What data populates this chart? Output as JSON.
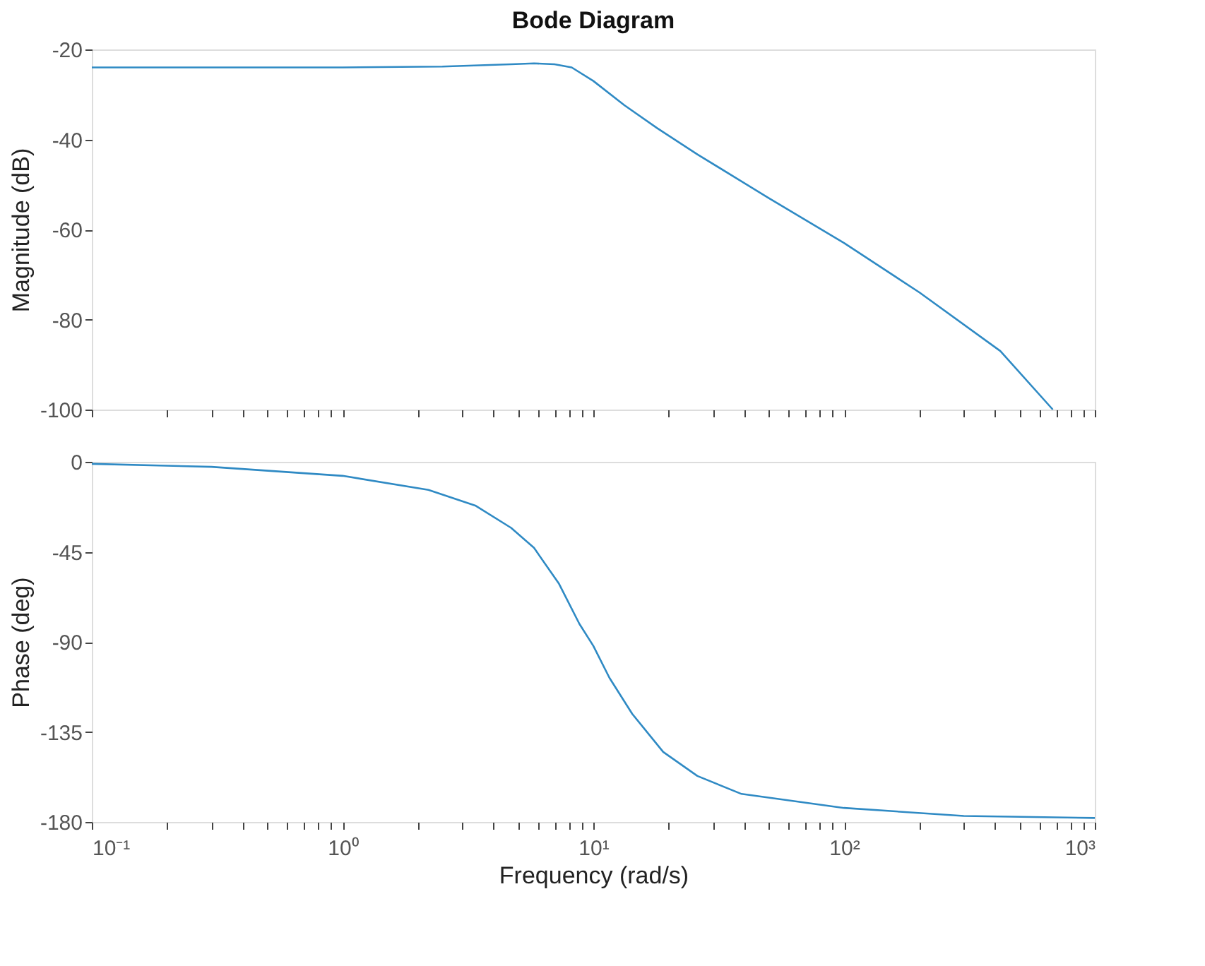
{
  "chart_data": [
    {
      "type": "line",
      "title": "Bode Diagram",
      "ylabel": "Magnitude (dB)",
      "log": "x",
      "grid": false,
      "tick_labels": "y",
      "marker": "none",
      "line_style": "solid",
      "xlim": [
        0.1,
        1000
      ],
      "ylim": [
        -100,
        -20
      ],
      "yticks": [
        -100,
        -80,
        -60,
        -40,
        -20
      ],
      "xticks": [
        {
          "value": 0.1,
          "label": null
        },
        {
          "value": 0.2,
          "label": null
        },
        {
          "value": 0.3,
          "label": null
        },
        {
          "value": 0.4,
          "label": null
        },
        {
          "value": 0.5,
          "label": null
        },
        {
          "value": 0.6,
          "label": null
        },
        {
          "value": 0.7,
          "label": null
        },
        {
          "value": 0.8,
          "label": null
        },
        {
          "value": 0.9,
          "label": null
        },
        {
          "value": 1,
          "label": null
        },
        {
          "value": 2,
          "label": null
        },
        {
          "value": 3,
          "label": null
        },
        {
          "value": 4,
          "label": null
        },
        {
          "value": 5,
          "label": null
        },
        {
          "value": 6,
          "label": null
        },
        {
          "value": 7,
          "label": null
        },
        {
          "value": 8,
          "label": null
        },
        {
          "value": 9,
          "label": null
        },
        {
          "value": 10,
          "label": null
        },
        {
          "value": 20,
          "label": null
        },
        {
          "value": 30,
          "label": null
        },
        {
          "value": 40,
          "label": null
        },
        {
          "value": 50,
          "label": null
        },
        {
          "value": 60,
          "label": null
        },
        {
          "value": 70,
          "label": null
        },
        {
          "value": 80,
          "label": null
        },
        {
          "value": 90,
          "label": null
        },
        {
          "value": 100,
          "label": null
        },
        {
          "value": 200,
          "label": null
        },
        {
          "value": 300,
          "label": null
        },
        {
          "value": 400,
          "label": null
        },
        {
          "value": 500,
          "label": null
        },
        {
          "value": 600,
          "label": null
        },
        {
          "value": 700,
          "label": null
        },
        {
          "value": 800,
          "label": null
        },
        {
          "value": 900,
          "label": null
        },
        {
          "value": 1000,
          "label": null
        }
      ],
      "series": [
        {
          "color": "#2f8ac4",
          "x": [
            0.1,
            1,
            2.5,
            4.7,
            5.8,
            7,
            8.2,
            10,
            13.3,
            18,
            26,
            50,
            100,
            200,
            420,
            680
          ],
          "values": [
            -24,
            -24,
            -23.8,
            -23.3,
            -23.1,
            -23.3,
            -24,
            -27,
            -32.4,
            -37.5,
            -43.3,
            -53,
            -63,
            -74,
            -87,
            -100
          ]
        }
      ]
    },
    {
      "type": "line",
      "xlabel": "Frequency  (rad/s)",
      "ylabel": "Phase (deg)",
      "log": "x",
      "grid": false,
      "marker": "none",
      "line_style": "solid",
      "xlim": [
        0.1,
        1000
      ],
      "ylim": [
        -180,
        0
      ],
      "yticks": [
        -180,
        -135,
        -90,
        -45,
        0
      ],
      "xticks": [
        {
          "value": 0.1,
          "label": "10⁻¹"
        },
        {
          "value": 0.2,
          "label": null
        },
        {
          "value": 0.3,
          "label": null
        },
        {
          "value": 0.4,
          "label": null
        },
        {
          "value": 0.5,
          "label": null
        },
        {
          "value": 0.6,
          "label": null
        },
        {
          "value": 0.7,
          "label": null
        },
        {
          "value": 0.8,
          "label": null
        },
        {
          "value": 0.9,
          "label": null
        },
        {
          "value": 1,
          "label": "10⁰"
        },
        {
          "value": 2,
          "label": null
        },
        {
          "value": 3,
          "label": null
        },
        {
          "value": 4,
          "label": null
        },
        {
          "value": 5,
          "label": null
        },
        {
          "value": 6,
          "label": null
        },
        {
          "value": 7,
          "label": null
        },
        {
          "value": 8,
          "label": null
        },
        {
          "value": 9,
          "label": null
        },
        {
          "value": 10,
          "label": "10¹"
        },
        {
          "value": 20,
          "label": null
        },
        {
          "value": 30,
          "label": null
        },
        {
          "value": 40,
          "label": null
        },
        {
          "value": 50,
          "label": null
        },
        {
          "value": 60,
          "label": null
        },
        {
          "value": 70,
          "label": null
        },
        {
          "value": 80,
          "label": null
        },
        {
          "value": 90,
          "label": null
        },
        {
          "value": 100,
          "label": "10²"
        },
        {
          "value": 200,
          "label": null
        },
        {
          "value": 300,
          "label": null
        },
        {
          "value": 400,
          "label": null
        },
        {
          "value": 500,
          "label": null
        },
        {
          "value": 600,
          "label": null
        },
        {
          "value": 700,
          "label": null
        },
        {
          "value": 800,
          "label": null
        },
        {
          "value": 900,
          "label": null
        },
        {
          "value": 1000,
          "label": "10³"
        }
      ],
      "series": [
        {
          "color": "#2f8ac4",
          "x": [
            0.1,
            0.3,
            1,
            2.2,
            3.4,
            4.7,
            5.8,
            7.3,
            8.8,
            10,
            11.6,
            14.3,
            19,
            26,
            39,
            100,
            300,
            1000
          ],
          "values": [
            -1,
            -2.5,
            -7,
            -14,
            -22,
            -33,
            -43,
            -61,
            -81,
            -92,
            -108,
            -126,
            -145,
            -157,
            -166,
            -173,
            -177,
            -178
          ]
        }
      ]
    }
  ]
}
